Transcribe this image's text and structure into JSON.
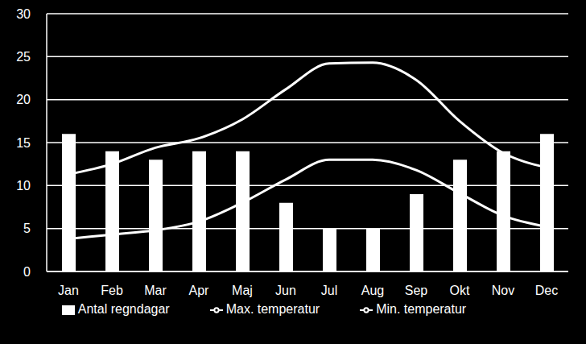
{
  "chart_data": {
    "type": "bar",
    "categories": [
      "Jan",
      "Feb",
      "Mar",
      "Apr",
      "Maj",
      "Jun",
      "Jul",
      "Aug",
      "Sep",
      "Okt",
      "Nov",
      "Dec"
    ],
    "series": [
      {
        "name": "Antal regndagar",
        "type": "bar",
        "color": "#ffffff",
        "values": [
          16,
          14,
          13,
          14,
          14,
          8,
          5,
          5,
          9,
          13,
          14,
          16
        ]
      },
      {
        "name": "Min. temperatur",
        "type": "line",
        "color": "#ffffff",
        "values": [
          3.8,
          4.3,
          4.8,
          5.8,
          8,
          10.7,
          13,
          13,
          11.8,
          9.1,
          6.5,
          5.2
        ]
      },
      {
        "name": "Max. temperatur",
        "type": "line",
        "color": "#ffffff",
        "values": [
          11.3,
          12.5,
          14.4,
          15.5,
          17.7,
          21.2,
          24.2,
          24.3,
          22.3,
          17.5,
          13.8,
          12.1
        ]
      }
    ],
    "ylim": [
      0,
      30
    ],
    "yticks": [
      0,
      5,
      10,
      15,
      20,
      25,
      30
    ],
    "grid": true,
    "legend": "bottom"
  }
}
